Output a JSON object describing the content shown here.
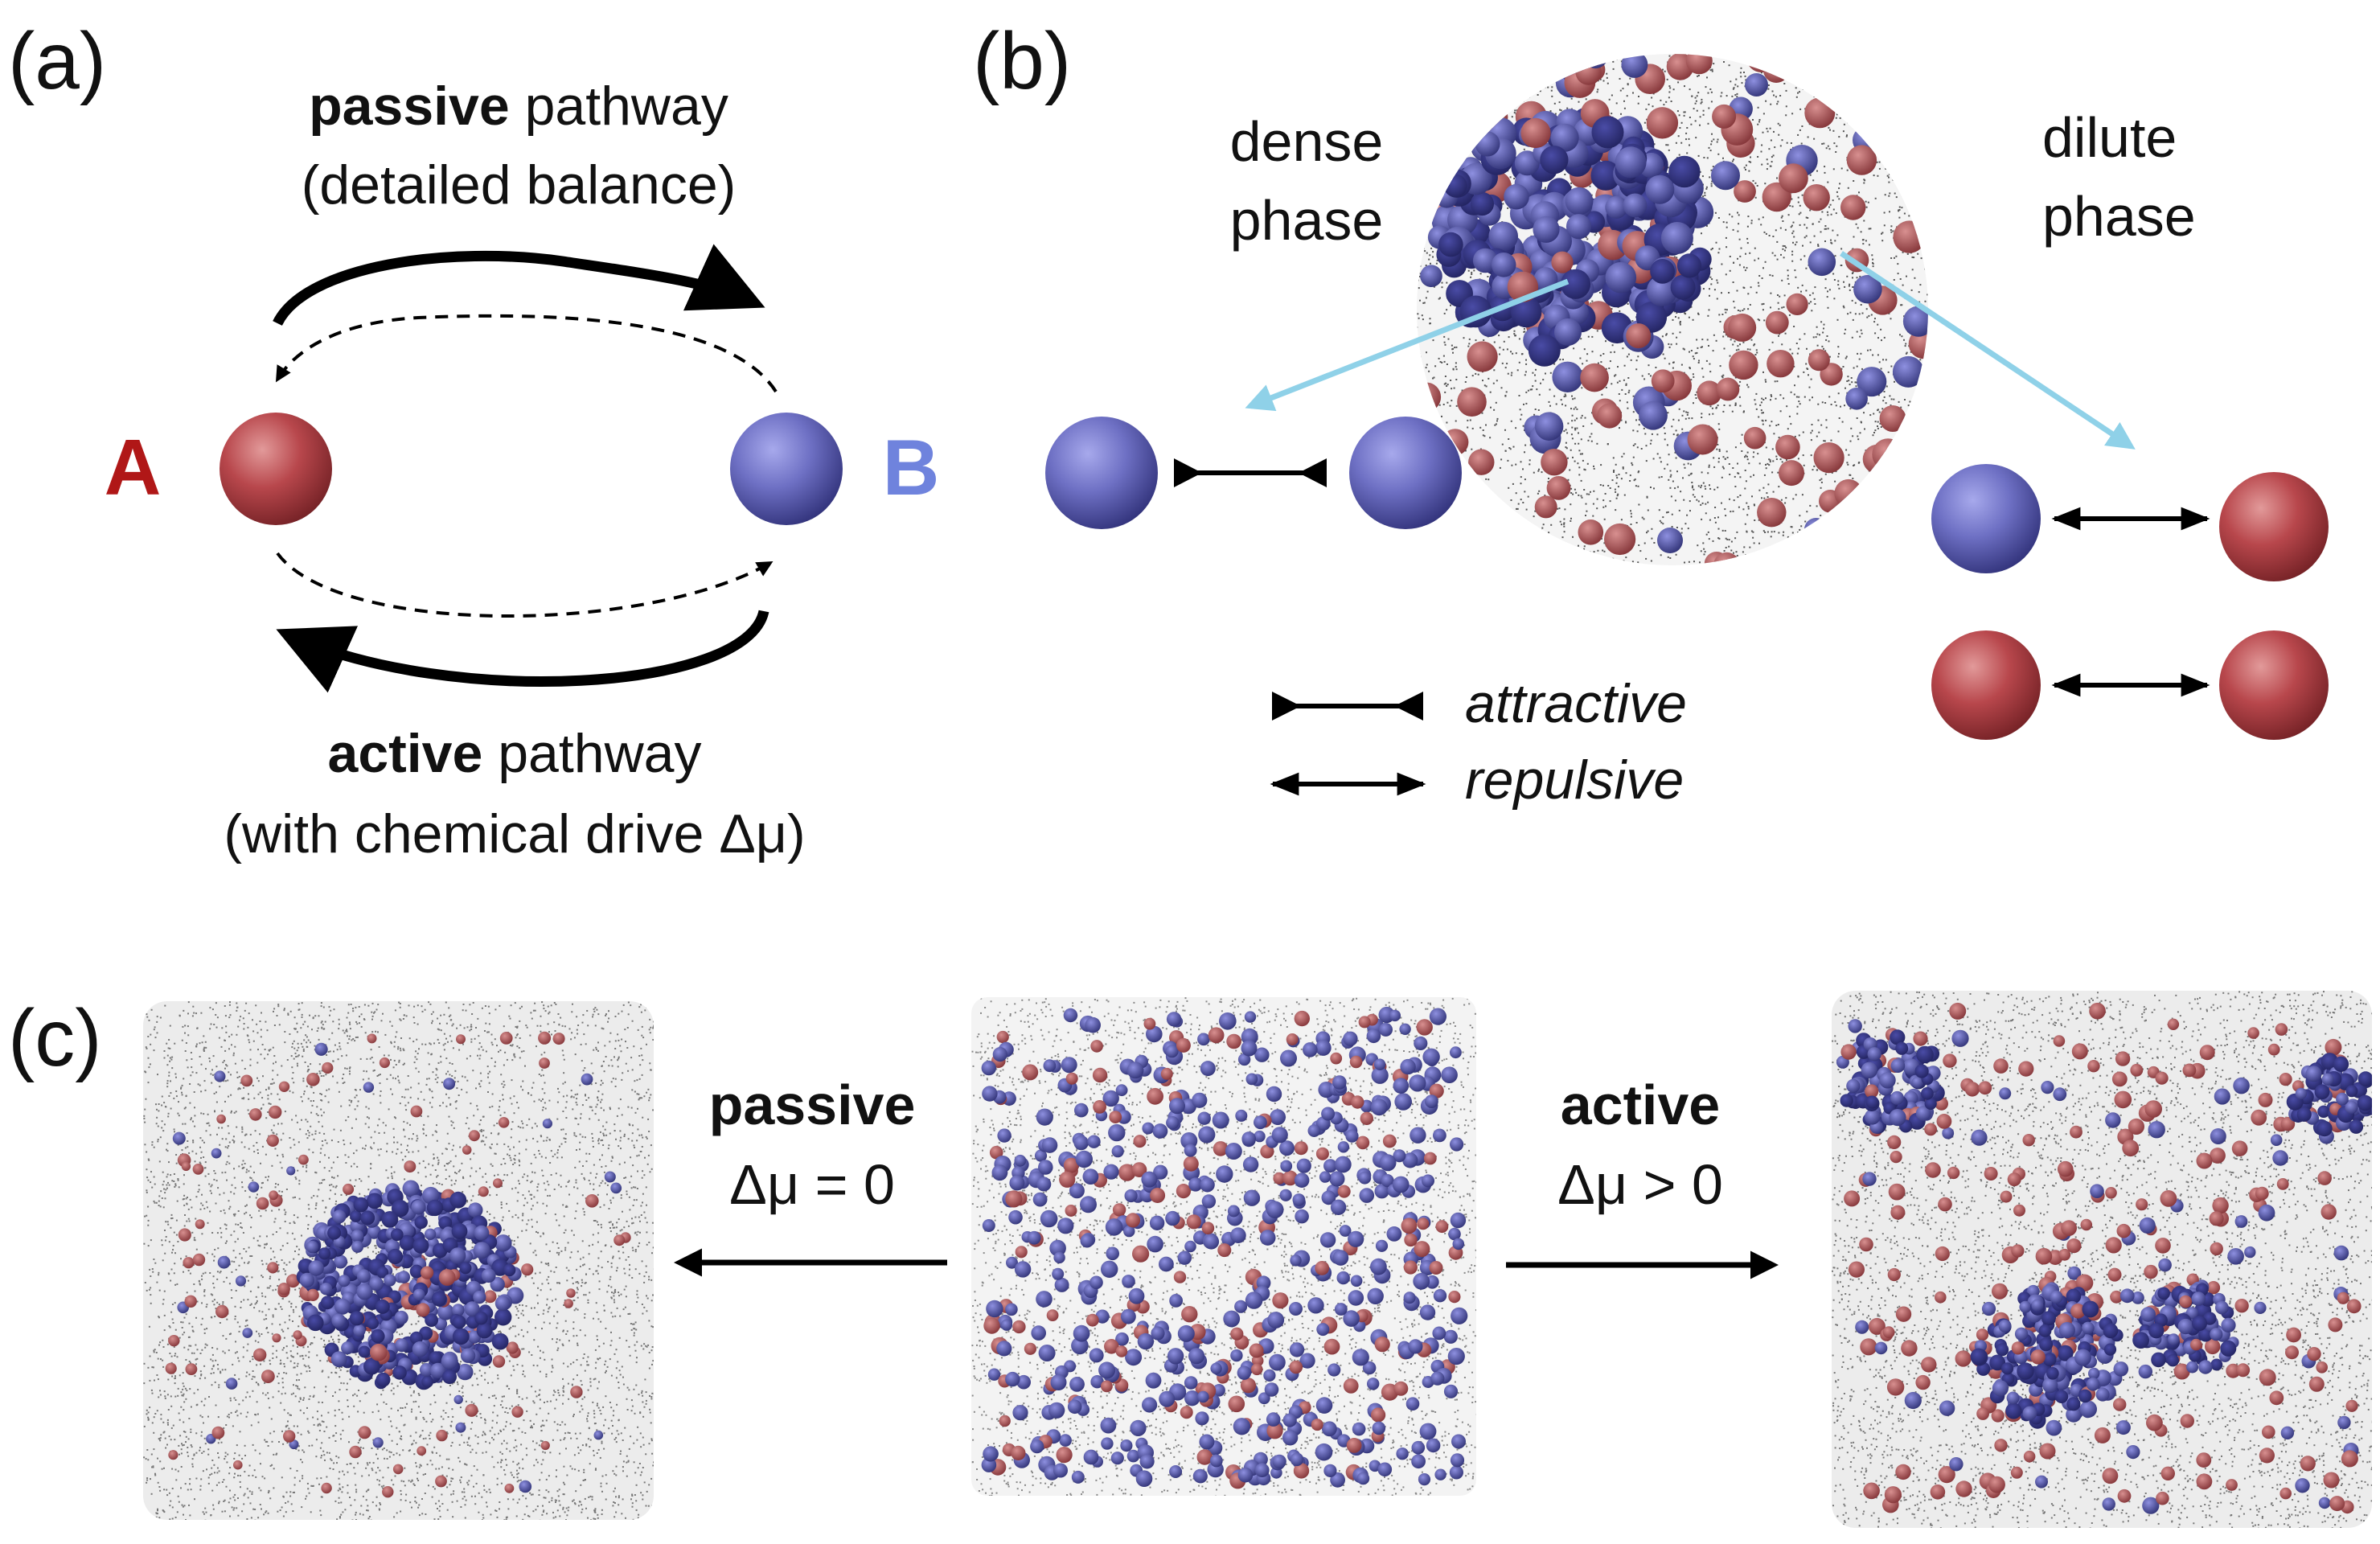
{
  "panel_a": {
    "label": "(a)",
    "state_a": "A",
    "state_b": "B",
    "passive_bold": "passive",
    "passive_rest": "pathway",
    "passive_sub": "(detailed balance)",
    "active_bold": "active",
    "active_rest": "pathway",
    "active_sub": "(with chemical drive Δμ)"
  },
  "panel_b": {
    "label": "(b)",
    "dense_line1": "dense",
    "dense_line2": "phase",
    "dilute_line1": "dilute",
    "dilute_line2": "phase",
    "legend_attractive": "attractive",
    "legend_repulsive": "repulsive"
  },
  "panel_c": {
    "label": "(c)",
    "passive_label": "passive",
    "passive_eq": "Δμ = 0",
    "active_label": "active",
    "active_eq": "Δμ > 0"
  },
  "colors": {
    "red_particle": "#b8474c",
    "blue_particle": "#6e70c4",
    "label_a": "#b01717",
    "label_b": "#6f83dd",
    "cyan_arrow": "#8fd1e8",
    "black": "#000000"
  }
}
